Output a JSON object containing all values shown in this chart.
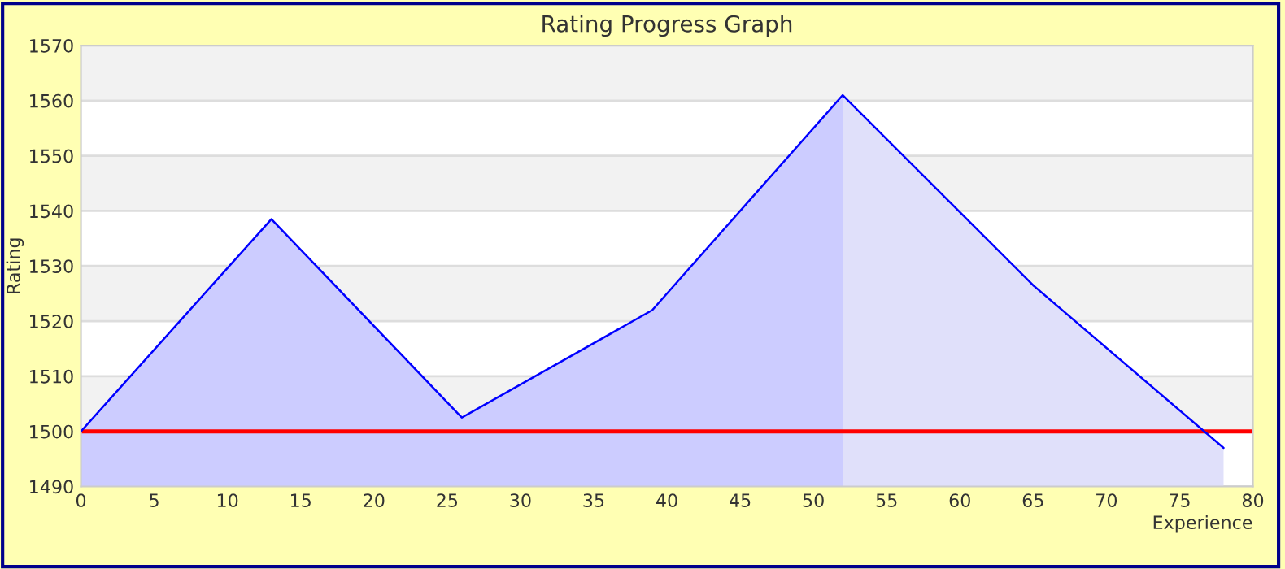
{
  "chart_data": {
    "type": "area",
    "title": "Rating Progress Graph",
    "xlabel": "Experience",
    "ylabel": "Rating",
    "series": [
      {
        "color": "#ccccff",
        "x": [
          0,
          13,
          26,
          39,
          52
        ],
        "values": [
          1500,
          1538.5,
          1502.5,
          1522,
          1561
        ]
      },
      {
        "color": "#e0e0fa",
        "x": [
          52,
          65,
          78
        ],
        "values": [
          1561,
          1526.5,
          1497
        ]
      },
      {
        "type": "line",
        "color": "#0000ff",
        "x": [
          0,
          13,
          26,
          39,
          52,
          65,
          78
        ],
        "values": [
          1500,
          1538.5,
          1502.5,
          1522,
          1561,
          1526.5,
          1497
        ]
      }
    ],
    "xlim": [
      0,
      80
    ],
    "xticks": [
      0,
      5,
      10,
      15,
      20,
      25,
      30,
      35,
      40,
      45,
      50,
      55,
      60,
      65,
      70,
      75,
      80
    ],
    "ylim": [
      1490,
      1570
    ],
    "yticks": [
      1490,
      1500,
      1510,
      1520,
      1530,
      1540,
      1550,
      1560,
      1570
    ],
    "grid": "y",
    "legend": false,
    "marker": "none",
    "line_style": "solid",
    "ref_lines": [
      {
        "axis": "y",
        "value": 1500,
        "color": "#ff0000"
      }
    ],
    "bands": [
      {
        "axis": "y",
        "from": 1500,
        "to": 1510,
        "color": "#f2f2f2"
      },
      {
        "axis": "y",
        "from": 1520,
        "to": 1530,
        "color": "#f2f2f2"
      },
      {
        "axis": "y",
        "from": 1540,
        "to": 1550,
        "color": "#f2f2f2"
      },
      {
        "axis": "y",
        "from": 1560,
        "to": 1570,
        "color": "#f2f2f2"
      }
    ]
  }
}
